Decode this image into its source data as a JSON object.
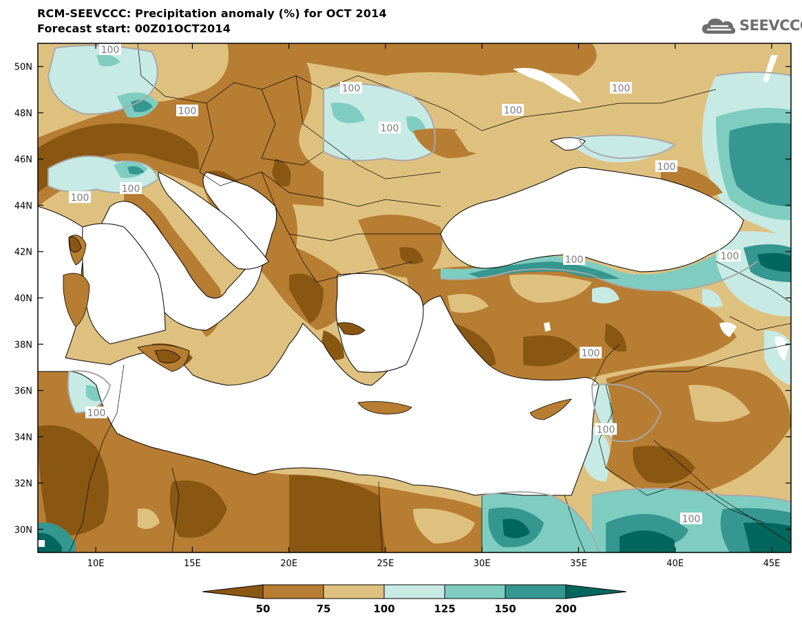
{
  "title": {
    "line1": "RCM-SEEVCCC: Precipitation anomaly (%) for OCT 2014",
    "line2": "Forecast start: 00Z01OCT2014"
  },
  "logo": {
    "text": "SEEVCCC",
    "icon": "cloud-icon"
  },
  "map": {
    "lon_range": [
      7,
      46
    ],
    "lat_range": [
      29,
      51
    ],
    "lon_ticks": [
      "10E",
      "15E",
      "20E",
      "25E",
      "30E",
      "35E",
      "40E",
      "45E"
    ],
    "lat_ticks": [
      "30N",
      "32N",
      "34N",
      "36N",
      "38N",
      "40N",
      "42N",
      "44N",
      "46N",
      "48N",
      "50N"
    ],
    "contour_labels": [
      "100",
      "100",
      "100",
      "100",
      "100",
      "100",
      "100",
      "100",
      "100",
      "100",
      "100",
      "100",
      "100",
      "100",
      "100"
    ],
    "sea_color": "#ffffff"
  },
  "colorbar": {
    "levels": [
      "50",
      "75",
      "100",
      "125",
      "150",
      "200"
    ],
    "colors": [
      "#8a5713",
      "#b77d32",
      "#dfc17f",
      "#c7eae4",
      "#7ecdc0",
      "#35978f",
      "#01665e"
    ]
  }
}
